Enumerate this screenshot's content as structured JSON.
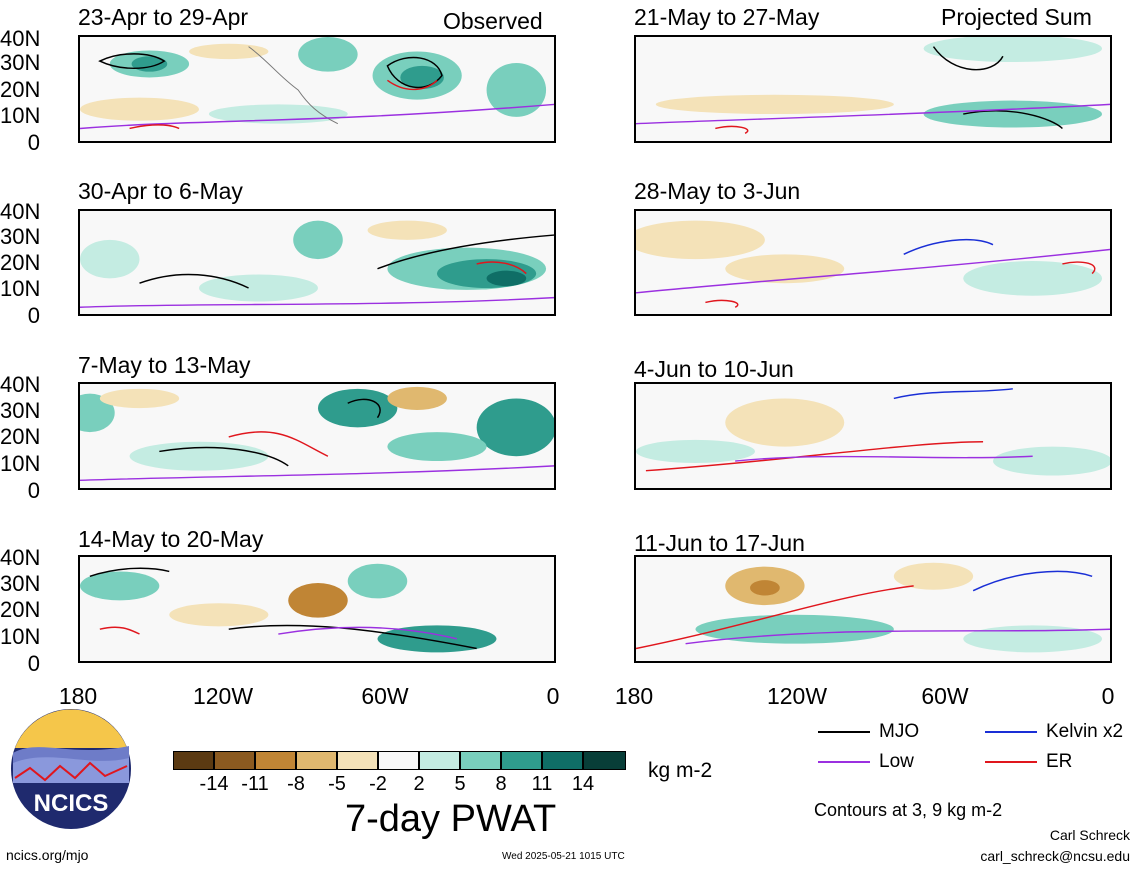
{
  "header": {
    "observed_label": "Observed",
    "projected_label": "Projected Sum"
  },
  "panels_left": [
    {
      "title": "23-Apr to 29-Apr"
    },
    {
      "title": "30-Apr to 6-May"
    },
    {
      "title": "7-May to 13-May"
    },
    {
      "title": "14-May to 20-May"
    }
  ],
  "panels_right": [
    {
      "title": "21-May to 27-May"
    },
    {
      "title": "28-May to 3-Jun"
    },
    {
      "title": "4-Jun to 10-Jun"
    },
    {
      "title": "11-Jun to 17-Jun"
    }
  ],
  "lat_ticks": [
    "40N",
    "30N",
    "20N",
    "10N",
    "0"
  ],
  "lon_ticks": [
    "180",
    "120W",
    "60W",
    "0"
  ],
  "colorbar": {
    "title": "7-day PWAT",
    "units": "kg m-2",
    "ticks": [
      "-14",
      "-11",
      "-8",
      "-5",
      "-2",
      "2",
      "5",
      "8",
      "11",
      "14"
    ],
    "colors": [
      "#5b3a12",
      "#8b5a20",
      "#c08535",
      "#e0b86f",
      "#f4e2b8",
      "#f8f8f8",
      "#c4ece2",
      "#79cfbd",
      "#2f9c8d",
      "#0f6e66",
      "#083e38"
    ]
  },
  "legend": {
    "items": [
      {
        "label": "MJO",
        "color": "#000000"
      },
      {
        "label": "Kelvin x2",
        "color": "#1a2fd6"
      },
      {
        "label": "Low",
        "color": "#9b30e0"
      },
      {
        "label": "ER",
        "color": "#e0161d"
      }
    ],
    "contour_note": "Contours at 3, 9 kg m-2"
  },
  "logo": {
    "text": "NCICS"
  },
  "footer": {
    "url": "ncics.org/mjo",
    "timestamp": "Wed 2025-05-21 1015 UTC",
    "author": "Carl Schreck",
    "email": "carl_schreck@ncsu.edu"
  }
}
